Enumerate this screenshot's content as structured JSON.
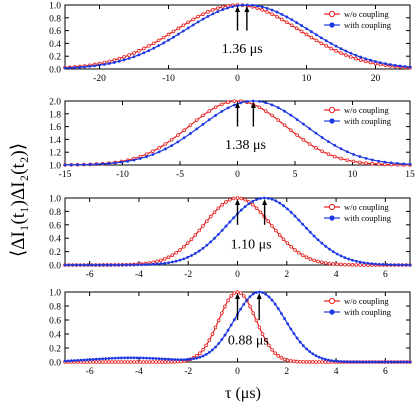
{
  "ylabel": "⟨ΔI₁(t₁)ΔI₂(t₂)⟩",
  "xlabel": "τ (μs)",
  "legend": {
    "without": "w/o coupling",
    "with": "with coupling"
  },
  "colors": {
    "without": "#e8201e",
    "with": "#1d38e0"
  },
  "chart_data": [
    {
      "type": "line",
      "xlim": [
        -25,
        25
      ],
      "ylim": [
        0.0,
        1.0
      ],
      "xticks": [
        -20,
        -10,
        0,
        10,
        20
      ],
      "yticks": [
        0.0,
        0.2,
        0.4,
        0.6,
        0.8,
        1.0
      ],
      "ytick_labels": [
        "0.0",
        "0.2",
        "0.4",
        "0.6",
        "0.8",
        "1.0"
      ],
      "annotation": "1.36 μs",
      "series": [
        {
          "name": "w/o coupling",
          "peak": 0.0,
          "sigma_left": 9.0,
          "sigma_right": 9.0,
          "base": 0.0,
          "amp": 1.0
        },
        {
          "name": "with coupling",
          "peak": 1.36,
          "sigma_left": 9.0,
          "sigma_right": 9.0,
          "base": 0.0,
          "amp": 1.0
        }
      ]
    },
    {
      "type": "line",
      "xlim": [
        -15,
        15
      ],
      "ylim": [
        1.0,
        2.0
      ],
      "xticks": [
        -15,
        -10,
        -5,
        0,
        5,
        10,
        15
      ],
      "yticks": [
        1.0,
        1.2,
        1.4,
        1.6,
        1.8,
        2.0
      ],
      "ytick_labels": [
        "1.0",
        "1.2",
        "1.4",
        "1.6",
        "1.8",
        "2.0"
      ],
      "annotation": "1.38 μs",
      "series": [
        {
          "name": "w/o coupling",
          "peak": 0.0,
          "sigma_left": 4.2,
          "sigma_right": 4.2,
          "base": 1.0,
          "amp": 1.0
        },
        {
          "name": "with coupling",
          "peak": 1.38,
          "sigma_left": 4.6,
          "sigma_right": 4.6,
          "base": 1.0,
          "amp": 1.0
        }
      ]
    },
    {
      "type": "line",
      "xlim": [
        -7,
        7
      ],
      "ylim": [
        0.0,
        1.0
      ],
      "xticks": [
        -6,
        -4,
        -2,
        0,
        2,
        4,
        6
      ],
      "yticks": [
        0.0,
        0.2,
        0.4,
        0.6,
        0.8,
        1.0
      ],
      "ytick_labels": [
        "0.0",
        "0.2",
        "0.4",
        "0.6",
        "0.8",
        "1.0"
      ],
      "annotation": "1.10 μs",
      "series": [
        {
          "name": "w/o coupling",
          "peak": 0.0,
          "sigma_left": 1.35,
          "sigma_right": 1.35,
          "base": 0.0,
          "amp": 1.0
        },
        {
          "name": "with coupling",
          "peak": 1.1,
          "sigma_left": 1.5,
          "sigma_right": 1.55,
          "base": 0.0,
          "amp": 1.0
        }
      ]
    },
    {
      "type": "line",
      "xlim": [
        -7,
        7
      ],
      "ylim": [
        0.0,
        1.0
      ],
      "xticks": [
        -6,
        -4,
        -2,
        0,
        2,
        4,
        6
      ],
      "yticks": [
        0.0,
        0.2,
        0.4,
        0.6,
        0.8,
        1.0
      ],
      "ytick_labels": [
        "0.0",
        "0.2",
        "0.4",
        "0.6",
        "0.8",
        "1.0"
      ],
      "annotation": "0.88 μs",
      "series": [
        {
          "name": "w/o coupling",
          "peak": 0.0,
          "sigma_left": 0.75,
          "sigma_right": 0.75,
          "base": 0.0,
          "amp": 1.0
        },
        {
          "name": "with coupling",
          "peak": 0.88,
          "sigma_left": 1.0,
          "sigma_right": 1.05,
          "base": 0.0,
          "amp": 1.0,
          "bump": {
            "center": -4.3,
            "height": 0.06,
            "width": 1.6
          }
        }
      ]
    }
  ]
}
